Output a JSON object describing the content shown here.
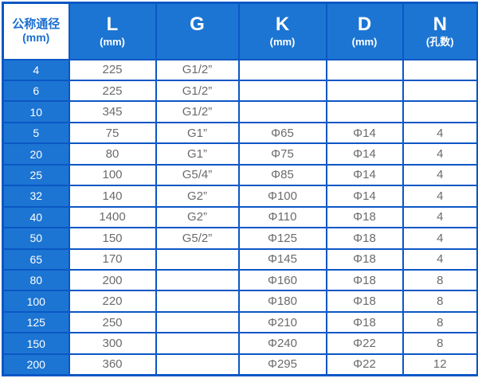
{
  "table": {
    "columns": [
      {
        "id": "dn",
        "title": "公称通径",
        "subtitle": "(mm)"
      },
      {
        "id": "l",
        "title": "L",
        "subtitle": "(mm)"
      },
      {
        "id": "g",
        "title": "G",
        "subtitle": ""
      },
      {
        "id": "k",
        "title": "K",
        "subtitle": "(mm)"
      },
      {
        "id": "d",
        "title": "D",
        "subtitle": "(mm)"
      },
      {
        "id": "n",
        "title": "N",
        "subtitle": "(孔数)"
      }
    ],
    "rows": [
      [
        "4",
        "225",
        "G1/2”",
        "",
        "",
        ""
      ],
      [
        "6",
        "225",
        "G1/2”",
        "",
        "",
        ""
      ],
      [
        "10",
        "345",
        "G1/2”",
        "",
        "",
        ""
      ],
      [
        "5",
        "75",
        "G1”",
        "Φ65",
        "Φ14",
        "4"
      ],
      [
        "20",
        "80",
        "G1”",
        "Φ75",
        "Φ14",
        "4"
      ],
      [
        "25",
        "100",
        "G5/4”",
        "Φ85",
        "Φ14",
        "4"
      ],
      [
        "32",
        "140",
        "G2”",
        "Φ100",
        "Φ14",
        "4"
      ],
      [
        "40",
        "1400",
        "G2”",
        "Φ110",
        "Φ18",
        "4"
      ],
      [
        "50",
        "150",
        "G5/2”",
        "Φ125",
        "Φ18",
        "4"
      ],
      [
        "65",
        "170",
        "",
        "Φ145",
        "Φ18",
        "4"
      ],
      [
        "80",
        "200",
        "",
        "Φ160",
        "Φ18",
        "8"
      ],
      [
        "100",
        "220",
        "",
        "Φ180",
        "Φ18",
        "8"
      ],
      [
        "125",
        "250",
        "",
        "Φ210",
        "Φ18",
        "8"
      ],
      [
        "150",
        "300",
        "",
        "Φ240",
        "Φ22",
        "8"
      ],
      [
        "200",
        "360",
        "",
        "Φ295",
        "Φ22",
        "12"
      ]
    ],
    "colors": {
      "header_fill": "#1c75d2",
      "border": "#0b57c5",
      "label_text": "#ffffff",
      "data_text": "#6b6b6b",
      "first_header_text": "#1a6fd0"
    }
  }
}
